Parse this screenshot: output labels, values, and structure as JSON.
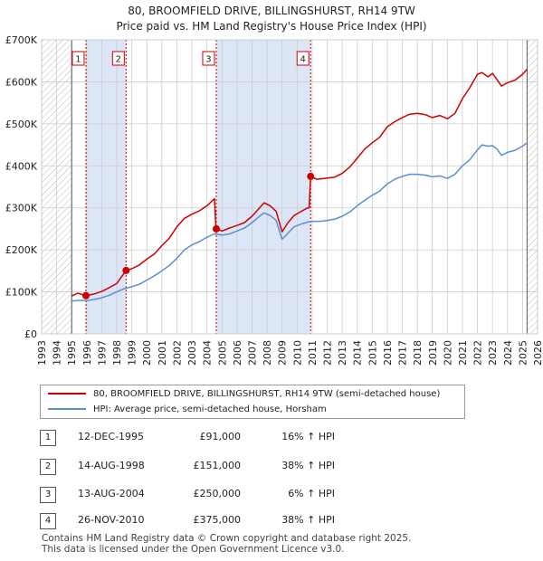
{
  "chart_data": {
    "type": "line",
    "title": "80, BROOMFIELD DRIVE, BILLINGSHURST, RH14 9TW",
    "subtitle": "Price paid vs. HM Land Registry's House Price Index (HPI)",
    "xlabel": "",
    "ylabel": "",
    "xlim": [
      1993,
      2026
    ],
    "ylim": [
      0,
      700000
    ],
    "y_ticks": [
      0,
      100000,
      200000,
      300000,
      400000,
      500000,
      600000,
      700000
    ],
    "y_tick_labels": [
      "£0",
      "£100K",
      "£200K",
      "£300K",
      "£400K",
      "£500K",
      "£600K",
      "£700K"
    ],
    "x_ticks": [
      1993,
      1994,
      1995,
      1996,
      1997,
      1998,
      1999,
      2000,
      2001,
      2002,
      2003,
      2004,
      2005,
      2006,
      2007,
      2008,
      2009,
      2010,
      2011,
      2012,
      2013,
      2014,
      2015,
      2016,
      2017,
      2018,
      2019,
      2020,
      2021,
      2022,
      2023,
      2024,
      2025,
      2026
    ],
    "x_tick_labels": [
      "1993",
      "1994",
      "1995",
      "1996",
      "1997",
      "1998",
      "1999",
      "2000",
      "2001",
      "2002",
      "2003",
      "2004",
      "2005",
      "2006",
      "2007",
      "2008",
      "2009",
      "2010",
      "2011",
      "2012",
      "2013",
      "2014",
      "2015",
      "2016",
      "2017",
      "2018",
      "2019",
      "2020",
      "2021",
      "2022",
      "2023",
      "2024",
      "2025",
      "2026"
    ],
    "data_range": [
      1995.0,
      2025.3
    ],
    "shaded_periods": [
      [
        1995.95,
        1998.62
      ],
      [
        2004.62,
        2010.9
      ]
    ],
    "series": [
      {
        "name": "80, BROOMFIELD DRIVE, BILLINGSHURST, RH14 9TW (semi-detached house)",
        "color": "#cc0000",
        "points": [
          [
            1995.0,
            90000
          ],
          [
            1995.4,
            97000
          ],
          [
            1995.95,
            91000
          ],
          [
            1996.5,
            95000
          ],
          [
            1997.0,
            101000
          ],
          [
            1997.5,
            110000
          ],
          [
            1998.0,
            120000
          ],
          [
            1998.62,
            151000
          ],
          [
            1999.0,
            155000
          ],
          [
            1999.5,
            164000
          ],
          [
            2000.0,
            178000
          ],
          [
            2000.5,
            190000
          ],
          [
            2001.0,
            210000
          ],
          [
            2001.5,
            228000
          ],
          [
            2002.0,
            255000
          ],
          [
            2002.5,
            275000
          ],
          [
            2003.0,
            285000
          ],
          [
            2003.5,
            293000
          ],
          [
            2004.0,
            305000
          ],
          [
            2004.5,
            322000
          ],
          [
            2004.6,
            252000
          ],
          [
            2004.62,
            250000
          ],
          [
            2005.0,
            245000
          ],
          [
            2005.5,
            252000
          ],
          [
            2006.0,
            258000
          ],
          [
            2006.5,
            265000
          ],
          [
            2007.0,
            280000
          ],
          [
            2007.5,
            300000
          ],
          [
            2007.8,
            312000
          ],
          [
            2008.2,
            305000
          ],
          [
            2008.6,
            292000
          ],
          [
            2009.0,
            243000
          ],
          [
            2009.4,
            265000
          ],
          [
            2009.8,
            282000
          ],
          [
            2010.3,
            292000
          ],
          [
            2010.7,
            300000
          ],
          [
            2010.8,
            300000
          ],
          [
            2010.9,
            375000
          ],
          [
            2011.3,
            368000
          ],
          [
            2011.8,
            370000
          ],
          [
            2012.5,
            373000
          ],
          [
            2013.0,
            382000
          ],
          [
            2013.5,
            397000
          ],
          [
            2014.0,
            418000
          ],
          [
            2014.5,
            440000
          ],
          [
            2015.0,
            455000
          ],
          [
            2015.5,
            468000
          ],
          [
            2016.0,
            493000
          ],
          [
            2016.5,
            505000
          ],
          [
            2017.0,
            515000
          ],
          [
            2017.5,
            523000
          ],
          [
            2018.0,
            525000
          ],
          [
            2018.5,
            522000
          ],
          [
            2019.0,
            515000
          ],
          [
            2019.5,
            520000
          ],
          [
            2020.0,
            512000
          ],
          [
            2020.5,
            525000
          ],
          [
            2021.0,
            560000
          ],
          [
            2021.5,
            587000
          ],
          [
            2022.0,
            618000
          ],
          [
            2022.3,
            622000
          ],
          [
            2022.7,
            612000
          ],
          [
            2023.0,
            620000
          ],
          [
            2023.3,
            605000
          ],
          [
            2023.6,
            590000
          ],
          [
            2024.0,
            598000
          ],
          [
            2024.5,
            604000
          ],
          [
            2025.0,
            618000
          ],
          [
            2025.3,
            630000
          ]
        ]
      },
      {
        "name": "HPI: Average price, semi-detached house, Horsham",
        "color": "#5b8fd0",
        "points": [
          [
            1995.0,
            78000
          ],
          [
            1995.5,
            80000
          ],
          [
            1996.0,
            79000
          ],
          [
            1996.5,
            82000
          ],
          [
            1997.0,
            86000
          ],
          [
            1997.5,
            92000
          ],
          [
            1998.0,
            100000
          ],
          [
            1998.5,
            108000
          ],
          [
            1999.0,
            112000
          ],
          [
            1999.5,
            118000
          ],
          [
            2000.0,
            128000
          ],
          [
            2000.5,
            138000
          ],
          [
            2001.0,
            150000
          ],
          [
            2001.5,
            163000
          ],
          [
            2002.0,
            180000
          ],
          [
            2002.5,
            200000
          ],
          [
            2003.0,
            212000
          ],
          [
            2003.5,
            220000
          ],
          [
            2004.0,
            230000
          ],
          [
            2004.5,
            238000
          ],
          [
            2005.0,
            235000
          ],
          [
            2005.5,
            238000
          ],
          [
            2006.0,
            245000
          ],
          [
            2006.5,
            252000
          ],
          [
            2007.0,
            265000
          ],
          [
            2007.5,
            280000
          ],
          [
            2007.8,
            288000
          ],
          [
            2008.2,
            282000
          ],
          [
            2008.6,
            270000
          ],
          [
            2009.0,
            225000
          ],
          [
            2009.4,
            240000
          ],
          [
            2009.8,
            255000
          ],
          [
            2010.3,
            262000
          ],
          [
            2010.9,
            268000
          ],
          [
            2011.5,
            268000
          ],
          [
            2012.0,
            270000
          ],
          [
            2012.5,
            273000
          ],
          [
            2013.0,
            280000
          ],
          [
            2013.5,
            290000
          ],
          [
            2014.0,
            305000
          ],
          [
            2014.5,
            318000
          ],
          [
            2015.0,
            330000
          ],
          [
            2015.5,
            340000
          ],
          [
            2016.0,
            357000
          ],
          [
            2016.5,
            368000
          ],
          [
            2017.0,
            375000
          ],
          [
            2017.5,
            380000
          ],
          [
            2018.0,
            380000
          ],
          [
            2018.5,
            378000
          ],
          [
            2019.0,
            374000
          ],
          [
            2019.5,
            376000
          ],
          [
            2020.0,
            370000
          ],
          [
            2020.5,
            380000
          ],
          [
            2021.0,
            400000
          ],
          [
            2021.5,
            415000
          ],
          [
            2022.0,
            438000
          ],
          [
            2022.3,
            450000
          ],
          [
            2022.7,
            447000
          ],
          [
            2023.0,
            448000
          ],
          [
            2023.3,
            440000
          ],
          [
            2023.6,
            425000
          ],
          [
            2024.0,
            432000
          ],
          [
            2024.5,
            437000
          ],
          [
            2025.0,
            447000
          ],
          [
            2025.3,
            455000
          ]
        ]
      }
    ],
    "transactions": [
      {
        "label": "1",
        "x": 1995.95,
        "price": 91000,
        "date": "12-DEC-1995",
        "price_label": "£91,000",
        "hpi_label": "16% ↑ HPI"
      },
      {
        "label": "2",
        "x": 1998.62,
        "price": 151000,
        "date": "14-AUG-1998",
        "price_label": "£151,000",
        "hpi_label": "38% ↑ HPI"
      },
      {
        "label": "3",
        "x": 2004.62,
        "price": 250000,
        "date": "13-AUG-2004",
        "price_label": "£250,000",
        "hpi_label": "6% ↑ HPI"
      },
      {
        "label": "4",
        "x": 2010.9,
        "price": 375000,
        "date": "26-NOV-2010",
        "price_label": "£375,000",
        "hpi_label": "38% ↑ HPI"
      }
    ]
  },
  "footer": {
    "line1": "Contains HM Land Registry data © Crown copyright and database right 2025.",
    "line2": "This data is licensed under the Open Government Licence v3.0."
  },
  "colors": {
    "property": "#cc0000",
    "hpi": "#5b8fd0",
    "shade": "#dde6f7",
    "hatch": "#bbbbbb",
    "grid": "#cccccc"
  }
}
